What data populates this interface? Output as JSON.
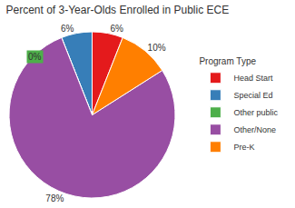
{
  "chart_data": {
    "type": "pie",
    "title": "Percent of 3-Year-Olds Enrolled in Public ECE",
    "legend_title": "Program Type",
    "categories": [
      "Head Start",
      "Special Ed",
      "Other public",
      "Other/None",
      "Pre-K"
    ],
    "values": [
      6,
      6,
      0,
      78,
      10
    ],
    "value_labels": [
      "6%",
      "6%",
      "0%",
      "78%",
      "10%"
    ],
    "colors": [
      "#e41a1c",
      "#377eb8",
      "#4daf4a",
      "#984ea3",
      "#ff7f00"
    ],
    "data_labels": true,
    "legend": "right"
  }
}
